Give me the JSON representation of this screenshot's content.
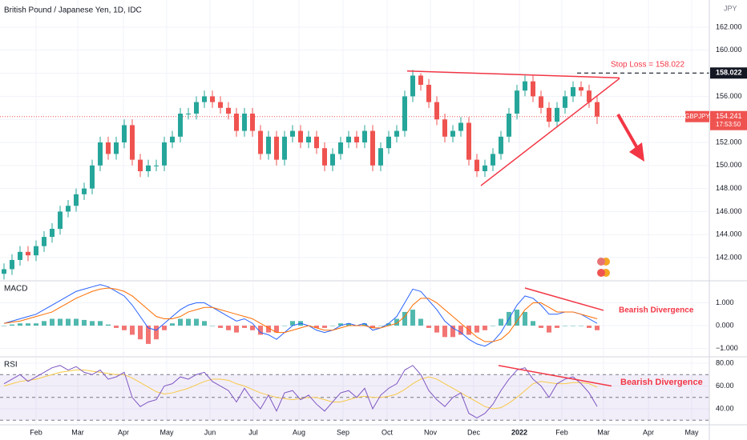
{
  "chart_data": [
    {
      "type": "candlestick",
      "title": "British Pound / Japanese Yen, 1D, IDC",
      "currency": "JPY",
      "symbol": "GBPJPY",
      "last_price": 154.241,
      "countdown": "17:53:50",
      "stop_loss_price": 158.022,
      "stop_loss_label": "Stop Loss = 158.022",
      "up_color": "#26a69a",
      "down_color": "#ef5350",
      "line_color": "#f23645",
      "open": [
        140.6,
        141.0,
        141.8,
        142.5,
        142.2,
        143.0,
        143.8,
        144.5,
        146.0,
        146.5,
        147.5,
        148.0,
        150.0,
        152.0,
        151.0,
        152.0,
        153.5,
        150.5,
        149.5,
        150.0,
        150.0,
        152.0,
        152.5,
        154.5,
        154.5,
        155.5,
        156.0,
        155.5,
        155.0,
        154.5,
        153.0,
        154.5,
        153.0,
        151.0,
        152.5,
        150.5,
        152.5,
        153.0,
        152.0,
        152.5,
        151.5,
        150.0,
        151.0,
        152.0,
        152.5,
        152.0,
        153.0,
        150.0,
        151.5,
        152.5,
        153.0,
        156.0,
        157.8,
        157.0,
        155.5,
        154.0,
        152.5,
        153.0,
        153.7,
        150.5,
        149.5,
        150.0,
        151.0,
        152.5,
        154.5,
        156.5,
        157.3,
        156.0,
        155.0,
        153.8,
        155.0,
        156.0,
        156.8,
        156.5,
        155.5
      ],
      "high": [
        141.5,
        142.3,
        143.0,
        143.0,
        143.5,
        144.3,
        145.0,
        146.5,
        147.0,
        148.0,
        148.5,
        150.5,
        152.5,
        152.5,
        152.5,
        154.0,
        154.0,
        151.0,
        150.5,
        150.5,
        152.5,
        153.0,
        155.0,
        155.0,
        156.0,
        156.5,
        156.5,
        156.0,
        155.5,
        155.0,
        155.0,
        155.0,
        153.5,
        153.0,
        153.0,
        153.0,
        153.5,
        153.5,
        153.0,
        153.0,
        152.0,
        151.5,
        152.5,
        153.0,
        153.0,
        153.5,
        153.5,
        152.0,
        153.0,
        153.5,
        156.5,
        158.3,
        158.0,
        157.5,
        156.0,
        154.5,
        153.5,
        154.2,
        154.2,
        151.0,
        150.5,
        151.5,
        153.0,
        155.0,
        157.0,
        157.8,
        157.8,
        156.5,
        155.5,
        155.5,
        156.5,
        157.3,
        157.3,
        157.0,
        156.0
      ],
      "low": [
        140.1,
        140.5,
        141.3,
        141.7,
        141.7,
        142.5,
        143.3,
        144.0,
        145.5,
        146.0,
        147.0,
        147.5,
        149.5,
        150.5,
        150.5,
        151.5,
        150.0,
        149.0,
        149.0,
        149.5,
        149.5,
        151.5,
        152.0,
        154.0,
        154.0,
        155.0,
        155.0,
        154.5,
        154.0,
        152.5,
        152.5,
        152.5,
        150.5,
        150.5,
        150.0,
        150.0,
        152.0,
        151.5,
        151.5,
        151.0,
        149.5,
        149.5,
        150.5,
        151.5,
        151.5,
        151.5,
        149.5,
        149.5,
        151.0,
        152.0,
        152.5,
        155.5,
        156.5,
        155.0,
        153.5,
        152.0,
        152.0,
        152.5,
        150.0,
        149.0,
        149.0,
        149.5,
        150.5,
        152.0,
        154.0,
        156.0,
        155.5,
        154.5,
        153.3,
        153.3,
        154.5,
        155.5,
        156.0,
        155.0,
        153.6
      ],
      "close": [
        141.0,
        141.8,
        142.5,
        142.2,
        143.0,
        143.8,
        144.5,
        146.0,
        146.5,
        147.5,
        148.0,
        150.0,
        152.0,
        151.0,
        152.0,
        153.5,
        150.5,
        149.5,
        150.0,
        150.0,
        152.0,
        152.5,
        154.5,
        154.5,
        155.5,
        156.0,
        155.5,
        155.0,
        154.5,
        153.0,
        154.5,
        153.0,
        151.0,
        152.5,
        150.5,
        152.5,
        153.0,
        152.0,
        152.5,
        151.5,
        150.0,
        151.0,
        152.0,
        152.5,
        152.0,
        153.0,
        150.0,
        151.5,
        152.5,
        153.0,
        156.0,
        157.8,
        157.0,
        155.5,
        154.0,
        152.5,
        153.0,
        153.7,
        150.5,
        149.5,
        150.0,
        151.0,
        152.5,
        154.5,
        156.5,
        157.3,
        156.0,
        155.0,
        153.8,
        155.0,
        156.0,
        156.8,
        156.5,
        155.5,
        154.241
      ],
      "xlim": [
        -0.5,
        88
      ],
      "xticks": [
        {
          "value": 4,
          "label": "Feb"
        },
        {
          "value": 9.2,
          "label": "Mar"
        },
        {
          "value": 14.9,
          "label": "Apr"
        },
        {
          "value": 20.3,
          "label": "May"
        },
        {
          "value": 25.7,
          "label": "Jun"
        },
        {
          "value": 31.1,
          "label": "Jul"
        },
        {
          "value": 36.8,
          "label": "Aug"
        },
        {
          "value": 42.3,
          "label": "Sep"
        },
        {
          "value": 47.8,
          "label": "Oct"
        },
        {
          "value": 53.2,
          "label": "Nov"
        },
        {
          "value": 58.6,
          "label": "Dec"
        },
        {
          "value": 64.3,
          "label": "2022"
        },
        {
          "value": 69.6,
          "label": "Feb"
        },
        {
          "value": 74.8,
          "label": "Mar"
        },
        {
          "value": 80.4,
          "label": "Apr"
        },
        {
          "value": 85.8,
          "label": "May"
        }
      ],
      "ylim": [
        140.06,
        164.36
      ],
      "yticks": [
        {
          "value": 142,
          "label": "142.000"
        },
        {
          "value": 144,
          "label": "144.000"
        },
        {
          "value": 146,
          "label": "146.000"
        },
        {
          "value": 148,
          "label": "148.000"
        },
        {
          "value": 150,
          "label": "150.000"
        },
        {
          "value": 152,
          "label": "152.000"
        },
        {
          "value": 154,
          "label": "154.000"
        },
        {
          "value": 156,
          "label": "156.000"
        },
        {
          "value": 158,
          "label": "158.000"
        },
        {
          "value": 160,
          "label": "160.000"
        },
        {
          "value": 162,
          "label": "162.000"
        }
      ],
      "trendlines": [
        {
          "x": [
            50.3,
            76.8
          ],
          "y": [
            158.2,
            157.6
          ]
        },
        {
          "x": [
            59.5,
            76.8
          ],
          "y": [
            148.25,
            157.55
          ]
        }
      ]
    },
    {
      "type": "macd",
      "title": "MACD",
      "annotation": "Bearish Divergence",
      "macd_color": "#2962ff",
      "signal_color": "#ff6d00",
      "up_color": "#26a69a",
      "down_color": "#ef5350",
      "line_color": "#f23645",
      "macd": [
        0.1,
        0.2,
        0.3,
        0.4,
        0.5,
        0.7,
        0.9,
        1.1,
        1.3,
        1.5,
        1.6,
        1.7,
        1.8,
        1.7,
        1.5,
        1.3,
        0.9,
        0.4,
        -0.1,
        -0.2,
        0.1,
        0.4,
        0.7,
        0.9,
        1.0,
        1.0,
        0.8,
        0.6,
        0.4,
        0.2,
        0.3,
        0.1,
        -0.3,
        -0.4,
        -0.6,
        -0.3,
        0.0,
        0.1,
        0.0,
        -0.2,
        -0.3,
        -0.2,
        0.0,
        0.1,
        0.0,
        0.1,
        -0.2,
        -0.1,
        0.1,
        0.4,
        1.0,
        1.6,
        1.5,
        1.1,
        0.7,
        0.2,
        -0.1,
        -0.3,
        -0.6,
        -0.8,
        -0.9,
        -0.7,
        -0.3,
        0.3,
        0.9,
        1.3,
        1.2,
        0.9,
        0.5,
        0.5,
        0.6,
        0.6,
        0.5,
        0.3,
        0.1
      ],
      "signal": [
        0.1,
        0.15,
        0.2,
        0.3,
        0.4,
        0.5,
        0.6,
        0.8,
        1.0,
        1.2,
        1.35,
        1.5,
        1.6,
        1.65,
        1.6,
        1.5,
        1.3,
        1.0,
        0.7,
        0.4,
        0.3,
        0.3,
        0.4,
        0.6,
        0.7,
        0.8,
        0.8,
        0.7,
        0.6,
        0.5,
        0.4,
        0.3,
        0.1,
        -0.1,
        -0.3,
        -0.3,
        -0.2,
        -0.1,
        0.0,
        -0.1,
        -0.2,
        -0.2,
        -0.1,
        0.0,
        0.0,
        0.0,
        -0.1,
        -0.1,
        0.0,
        0.1,
        0.4,
        0.9,
        1.2,
        1.2,
        1.0,
        0.7,
        0.4,
        0.1,
        -0.2,
        -0.5,
        -0.7,
        -0.7,
        -0.6,
        -0.3,
        0.2,
        0.7,
        1.0,
        1.0,
        0.8,
        0.6,
        0.6,
        0.6,
        0.5,
        0.4,
        0.3
      ],
      "histogram": [
        0.0,
        0.05,
        0.1,
        0.1,
        0.1,
        0.2,
        0.3,
        0.3,
        0.3,
        0.3,
        0.25,
        0.2,
        0.2,
        0.05,
        -0.1,
        -0.2,
        -0.4,
        -0.6,
        -0.8,
        -0.6,
        -0.2,
        0.1,
        0.3,
        0.3,
        0.3,
        0.2,
        0.0,
        -0.1,
        -0.2,
        -0.3,
        -0.1,
        -0.2,
        -0.4,
        -0.3,
        -0.3,
        0.0,
        0.2,
        0.2,
        0.0,
        -0.1,
        -0.1,
        0.0,
        0.1,
        0.1,
        0.0,
        0.1,
        -0.1,
        0.0,
        0.1,
        0.3,
        0.6,
        0.7,
        0.3,
        -0.1,
        -0.3,
        -0.5,
        -0.5,
        -0.4,
        -0.4,
        -0.3,
        -0.2,
        0.0,
        0.3,
        0.6,
        0.7,
        0.6,
        0.2,
        -0.1,
        -0.3,
        -0.1,
        0.0,
        0.0,
        0.0,
        -0.1,
        -0.2
      ],
      "ylim": [
        -1.33,
        1.93
      ],
      "yticks": [
        {
          "value": 1,
          "label": "1.000"
        },
        {
          "value": 0,
          "label": "0.000"
        },
        {
          "value": -1,
          "label": "−1.000"
        }
      ],
      "trendlines": [
        {
          "x": [
            65,
            74.8
          ],
          "y": [
            1.65,
            0.67
          ]
        }
      ]
    },
    {
      "type": "rsi",
      "title": "RSI",
      "annotation": "Bearish Divergence",
      "rsi_color": "#7e57c2",
      "ma_color": "#f7c948",
      "line_color": "#f23645",
      "rsi": [
        62,
        66,
        70,
        64,
        68,
        72,
        76,
        78,
        74,
        77,
        72,
        70,
        74,
        66,
        68,
        72,
        50,
        42,
        46,
        48,
        60,
        62,
        68,
        66,
        70,
        72,
        64,
        60,
        56,
        46,
        58,
        48,
        40,
        52,
        38,
        54,
        56,
        48,
        52,
        44,
        38,
        46,
        54,
        56,
        50,
        58,
        40,
        52,
        58,
        62,
        74,
        78,
        70,
        56,
        48,
        42,
        50,
        54,
        36,
        32,
        36,
        44,
        56,
        66,
        74,
        76,
        66,
        60,
        50,
        62,
        66,
        68,
        62,
        54,
        42
      ],
      "rsi_ma": [
        60,
        62,
        64,
        65,
        66,
        68,
        70,
        72,
        73,
        74,
        74,
        73,
        72,
        71,
        70,
        70,
        67,
        63,
        59,
        55,
        53,
        54,
        56,
        58,
        61,
        64,
        66,
        66,
        65,
        62,
        60,
        57,
        54,
        52,
        50,
        49,
        48,
        49,
        50,
        50,
        48,
        46,
        46,
        48,
        50,
        51,
        50,
        50,
        51,
        53,
        57,
        62,
        66,
        68,
        66,
        62,
        58,
        54,
        50,
        46,
        42,
        40,
        41,
        45,
        50,
        56,
        62,
        64,
        63,
        62,
        62,
        63,
        63,
        62,
        59
      ],
      "levels": [
        30,
        50,
        70
      ],
      "ylim": [
        26.7,
        84.9
      ],
      "yticks": [
        {
          "value": 80,
          "label": "80.00"
        },
        {
          "value": 60,
          "label": "60.00"
        },
        {
          "value": 40,
          "label": "40.00"
        }
      ],
      "trendlines": [
        {
          "x": [
            61.7,
            75.8
          ],
          "y": [
            78,
            60
          ]
        }
      ]
    }
  ]
}
